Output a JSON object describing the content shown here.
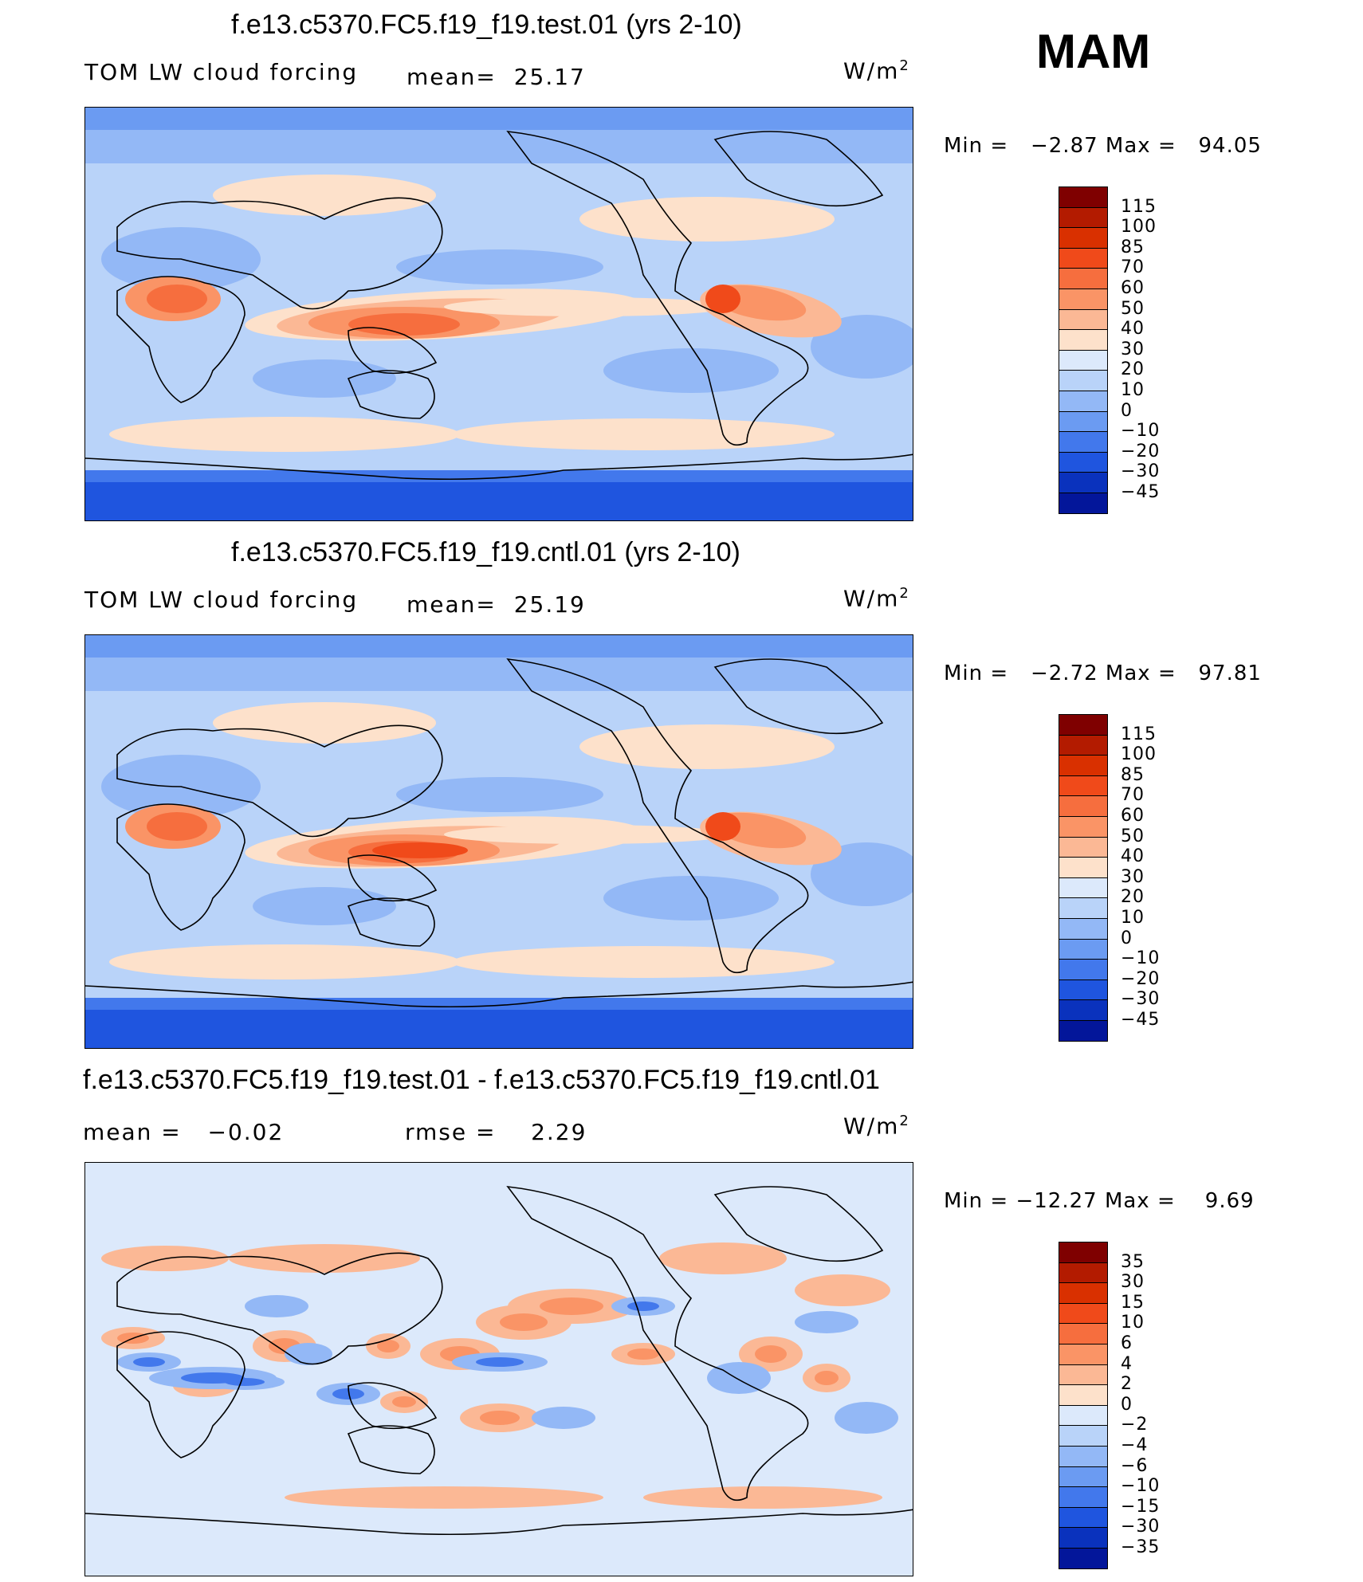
{
  "season": "MAM",
  "units": {
    "base": "W/m",
    "exp": "2"
  },
  "panels": [
    {
      "title": "f.e13.c5370.FC5.f19_f19.test.01 (yrs 2-10)",
      "left_label": "TOM LW cloud forcing",
      "mid_label": "mean=",
      "mid_value": "25.17",
      "min_text": "Min =   −2.87",
      "max_text": "Max =   94.05",
      "colorbar": {
        "labels": [
          "115",
          "100",
          "85",
          "70",
          "60",
          "50",
          "40",
          "30",
          "20",
          "10",
          "0",
          "−10",
          "−20",
          "−30",
          "−45"
        ],
        "colors": [
          "#7f0000",
          "#b31b00",
          "#d93000",
          "#f04a1a",
          "#f66e3e",
          "#fa9466",
          "#fbb895",
          "#fde1cb",
          "#dce9fb",
          "#b9d3f9",
          "#93b8f6",
          "#6b9bf2",
          "#4278ec",
          "#1f55df",
          "#0a32bd",
          "#03169a"
        ]
      },
      "map_kind": "mean"
    },
    {
      "title": "f.e13.c5370.FC5.f19_f19.cntl.01 (yrs 2-10)",
      "left_label": "TOM LW cloud forcing",
      "mid_label": "mean=",
      "mid_value": "25.19",
      "min_text": "Min =   −2.72",
      "max_text": "Max =   97.81",
      "colorbar": {
        "labels": [
          "115",
          "100",
          "85",
          "70",
          "60",
          "50",
          "40",
          "30",
          "20",
          "10",
          "0",
          "−10",
          "−20",
          "−30",
          "−45"
        ],
        "colors": [
          "#7f0000",
          "#b31b00",
          "#d93000",
          "#f04a1a",
          "#f66e3e",
          "#fa9466",
          "#fbb895",
          "#fde1cb",
          "#dce9fb",
          "#b9d3f9",
          "#93b8f6",
          "#6b9bf2",
          "#4278ec",
          "#1f55df",
          "#0a32bd",
          "#03169a"
        ]
      },
      "map_kind": "mean"
    },
    {
      "title": "f.e13.c5370.FC5.f19_f19.test.01 - f.e13.c5370.FC5.f19_f19.cntl.01",
      "left_label": "mean =",
      "left_value": "−0.02",
      "mid_label": "rmse =",
      "mid_value": "2.29",
      "min_text": "Min = −12.27",
      "max_text": "Max =    9.69",
      "colorbar": {
        "labels": [
          "35",
          "30",
          "15",
          "10",
          "6",
          "4",
          "2",
          "0",
          "−2",
          "−4",
          "−6",
          "−10",
          "−15",
          "−30",
          "−35"
        ],
        "colors": [
          "#7f0000",
          "#b31b00",
          "#d93000",
          "#f04a1a",
          "#f66e3e",
          "#fa9466",
          "#fbb895",
          "#fde1cb",
          "#dce9fb",
          "#b9d3f9",
          "#93b8f6",
          "#6b9bf2",
          "#4278ec",
          "#1f55df",
          "#0a32bd",
          "#03169a"
        ]
      },
      "map_kind": "diff"
    }
  ]
}
